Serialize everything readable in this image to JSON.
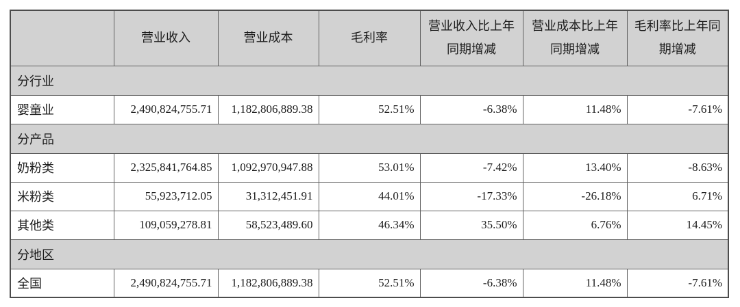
{
  "colors": {
    "header_bg": "#d2d2d2",
    "section_bg": "#d2d2d2",
    "row_bg": "#ffffff",
    "border": "#5f5f5f",
    "text": "#1c1c1c"
  },
  "table": {
    "column_headers": [
      "",
      "营业收入",
      "营业成本",
      "毛利率",
      "营业收入比上年同期增减",
      "营业成本比上年同期增减",
      "毛利率比上年同期增减"
    ],
    "sections": [
      {
        "header": "分行业",
        "rows": [
          {
            "label": "婴童业",
            "values": [
              "2,490,824,755.71",
              "1,182,806,889.38",
              "52.51%",
              "-6.38%",
              "11.48%",
              "-7.61%"
            ]
          }
        ]
      },
      {
        "header": "分产品",
        "rows": [
          {
            "label": "奶粉类",
            "values": [
              "2,325,841,764.85",
              "1,092,970,947.88",
              "53.01%",
              "-7.42%",
              "13.40%",
              "-8.63%"
            ]
          },
          {
            "label": "米粉类",
            "values": [
              "55,923,712.05",
              "31,312,451.91",
              "44.01%",
              "-17.33%",
              "-26.18%",
              "6.71%"
            ]
          },
          {
            "label": "其他类",
            "values": [
              "109,059,278.81",
              "58,523,489.60",
              "46.34%",
              "35.50%",
              "6.76%",
              "14.45%"
            ]
          }
        ]
      },
      {
        "header": "分地区",
        "rows": [
          {
            "label": "全国",
            "values": [
              "2,490,824,755.71",
              "1,182,806,889.38",
              "52.51%",
              "-6.38%",
              "11.48%",
              "-7.61%"
            ]
          }
        ]
      }
    ]
  }
}
